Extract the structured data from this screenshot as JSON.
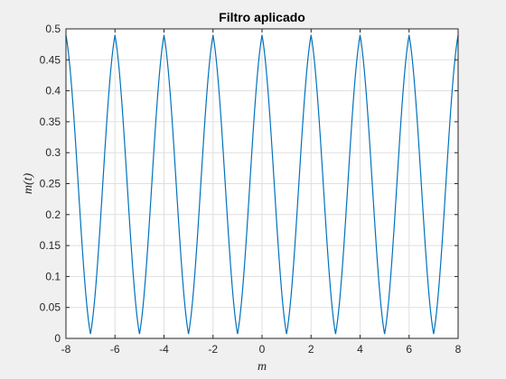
{
  "chart_data": {
    "type": "line",
    "title": "Filtro aplicado",
    "xlabel": "m",
    "ylabel": "m(t)",
    "xlim": [
      -8,
      8
    ],
    "ylim": [
      0,
      0.5
    ],
    "xticks": [
      "-8",
      "-6",
      "-4",
      "-2",
      "0",
      "2",
      "4",
      "6",
      "8"
    ],
    "yticks": [
      "0",
      "0.05",
      "0.1",
      "0.15",
      "0.2",
      "0.25",
      "0.3",
      "0.35",
      "0.4",
      "0.45",
      "0.5"
    ],
    "grid": true,
    "series": [
      {
        "color": "#0072bd",
        "x": [
          -8,
          -7,
          -6,
          -5,
          -4,
          -3,
          -2,
          -1,
          0,
          1,
          2,
          3,
          4,
          5,
          6,
          7,
          8
        ],
        "y": [
          0.49,
          0.007,
          0.49,
          0.007,
          0.49,
          0.007,
          0.49,
          0.007,
          0.49,
          0.007,
          0.49,
          0.007,
          0.49,
          0.007,
          0.49,
          0.007,
          0.49
        ]
      }
    ]
  }
}
